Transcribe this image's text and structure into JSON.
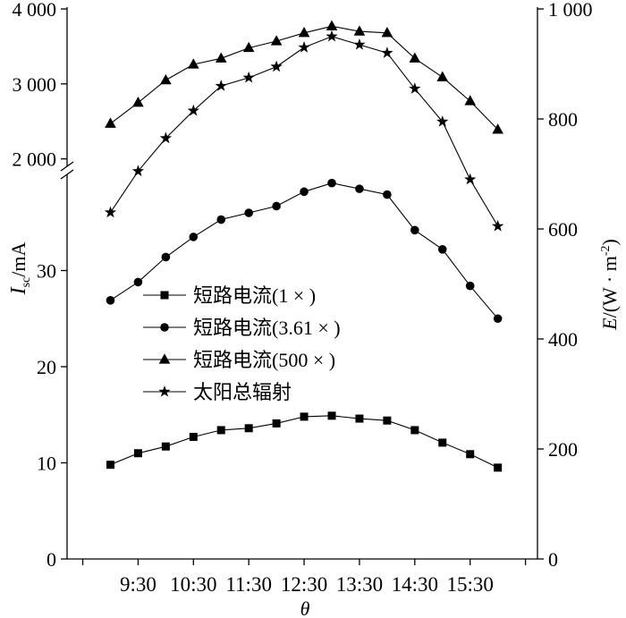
{
  "chart_data": {
    "type": "line",
    "x": [
      "9:00",
      "9:30",
      "10:00",
      "10:30",
      "11:00",
      "11:30",
      "12:00",
      "12:30",
      "13:00",
      "13:30",
      "14:00",
      "14:30",
      "15:00",
      "15:30",
      "16:00"
    ],
    "xlabel": "θ",
    "xlim": [
      "8:13",
      "16:43"
    ],
    "x_ticks": [
      "8:30",
      "9:30",
      "10:30",
      "11:30",
      "12:30",
      "13:30",
      "14:30",
      "15:30",
      "16:30"
    ],
    "x_tick_labels": [
      "9:30",
      "10:30",
      "11:30",
      "12:30",
      "13:30",
      "14:30",
      "15:30"
    ],
    "y_left": {
      "label": {
        "symbol": "I",
        "subscript": "sc",
        "unit": "/mA"
      },
      "broken": true,
      "segments": [
        {
          "range": [
            0,
            40
          ],
          "ticks": [
            0,
            10,
            20,
            30
          ],
          "tick_labels": [
            "0",
            "10",
            "20",
            "30"
          ]
        },
        {
          "range": [
            1900,
            4000
          ],
          "ticks": [
            2000,
            3000,
            4000
          ],
          "tick_labels": [
            "2 000",
            "3 000",
            "4 000"
          ]
        }
      ]
    },
    "y_right": {
      "label": {
        "symbol": "E",
        "text": "/(W · m",
        "superscript": "-2",
        "suffix": ")"
      },
      "range": [
        0,
        1000
      ],
      "ticks": [
        0,
        200,
        400,
        600,
        800,
        1000
      ],
      "tick_labels": [
        "0",
        "200",
        "400",
        "600",
        "800",
        "1 000"
      ]
    },
    "series": [
      {
        "name": "短路电流(1 × )",
        "marker": "square",
        "axis": "left",
        "values": [
          9.8,
          11.0,
          11.7,
          12.7,
          13.4,
          13.6,
          14.1,
          14.8,
          14.9,
          14.6,
          14.4,
          13.4,
          12.1,
          10.9,
          9.5
        ]
      },
      {
        "name": "短路电流(3.61 × )",
        "marker": "circle",
        "axis": "left",
        "values": [
          26.9,
          28.8,
          31.4,
          33.5,
          35.3,
          36.0,
          36.7,
          38.2,
          39.1,
          38.5,
          37.9,
          34.2,
          32.2,
          28.4,
          25.0
        ]
      },
      {
        "name": "短路电流(500 × )",
        "marker": "triangle",
        "axis": "left",
        "values": [
          2470,
          2750,
          3050,
          3260,
          3340,
          3480,
          3570,
          3680,
          3770,
          3700,
          3680,
          3340,
          3090,
          2770,
          2390
        ]
      },
      {
        "name": "太阳总辐射",
        "marker": "star",
        "axis": "right",
        "values": [
          630,
          705,
          765,
          815,
          860,
          875,
          895,
          930,
          950,
          935,
          920,
          855,
          795,
          690,
          605
        ]
      }
    ],
    "legend": "center-left",
    "grid": false,
    "colors": {
      "line": "#000000"
    }
  }
}
